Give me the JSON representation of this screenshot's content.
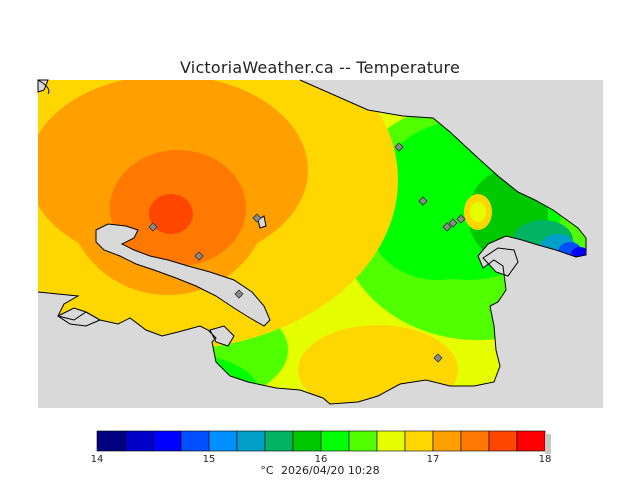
{
  "title": "VictoriaWeather.ca -- Temperature",
  "legend": {
    "min": 14,
    "max": 18,
    "tick_labels": [
      "14",
      "15",
      "16",
      "17",
      "18"
    ],
    "colors": [
      "#000080",
      "#0000c8",
      "#0000ff",
      "#0050ff",
      "#0090ff",
      "#00a0c8",
      "#00b464",
      "#00c800",
      "#00ff00",
      "#50ff00",
      "#e6ff00",
      "#ffd700",
      "#ffa000",
      "#ff7800",
      "#ff4600",
      "#ff0000"
    ]
  },
  "caption": {
    "unit": "°C",
    "timestamp": "2026/04/20 10:28"
  },
  "map": {
    "land_color": "#e6ff00",
    "water_color": "#d9d9d9",
    "station_color": "#8a8a8a",
    "station_count": 10
  }
}
